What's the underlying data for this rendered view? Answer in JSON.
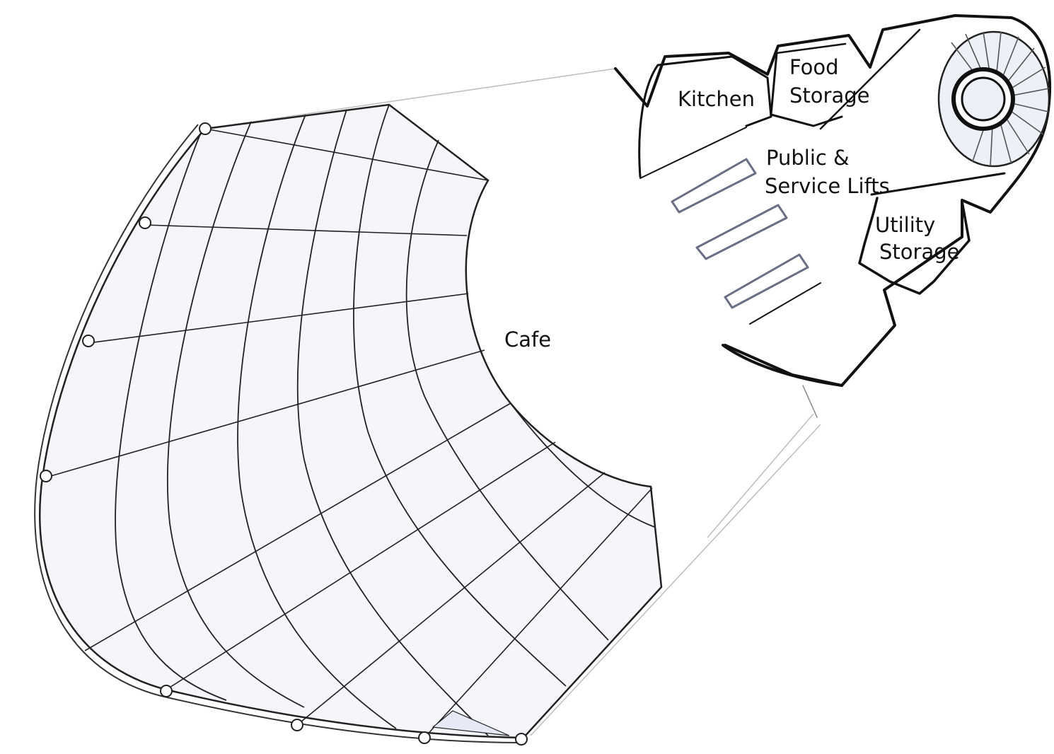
{
  "labels": {
    "kitchen": "Kitchen",
    "food_storage_1": "Food",
    "food_storage_2": "Storage",
    "lifts_1": "Public &",
    "lifts_2": "Service Lifts",
    "utility_storage_1": "Utility",
    "utility_storage_2": "Storage",
    "cafe": "Cafe"
  },
  "colors": {
    "line": "#222222",
    "floor_fill": "#f4f6fa",
    "accent_fill": "#e6eaf6",
    "background": "#ffffff"
  }
}
